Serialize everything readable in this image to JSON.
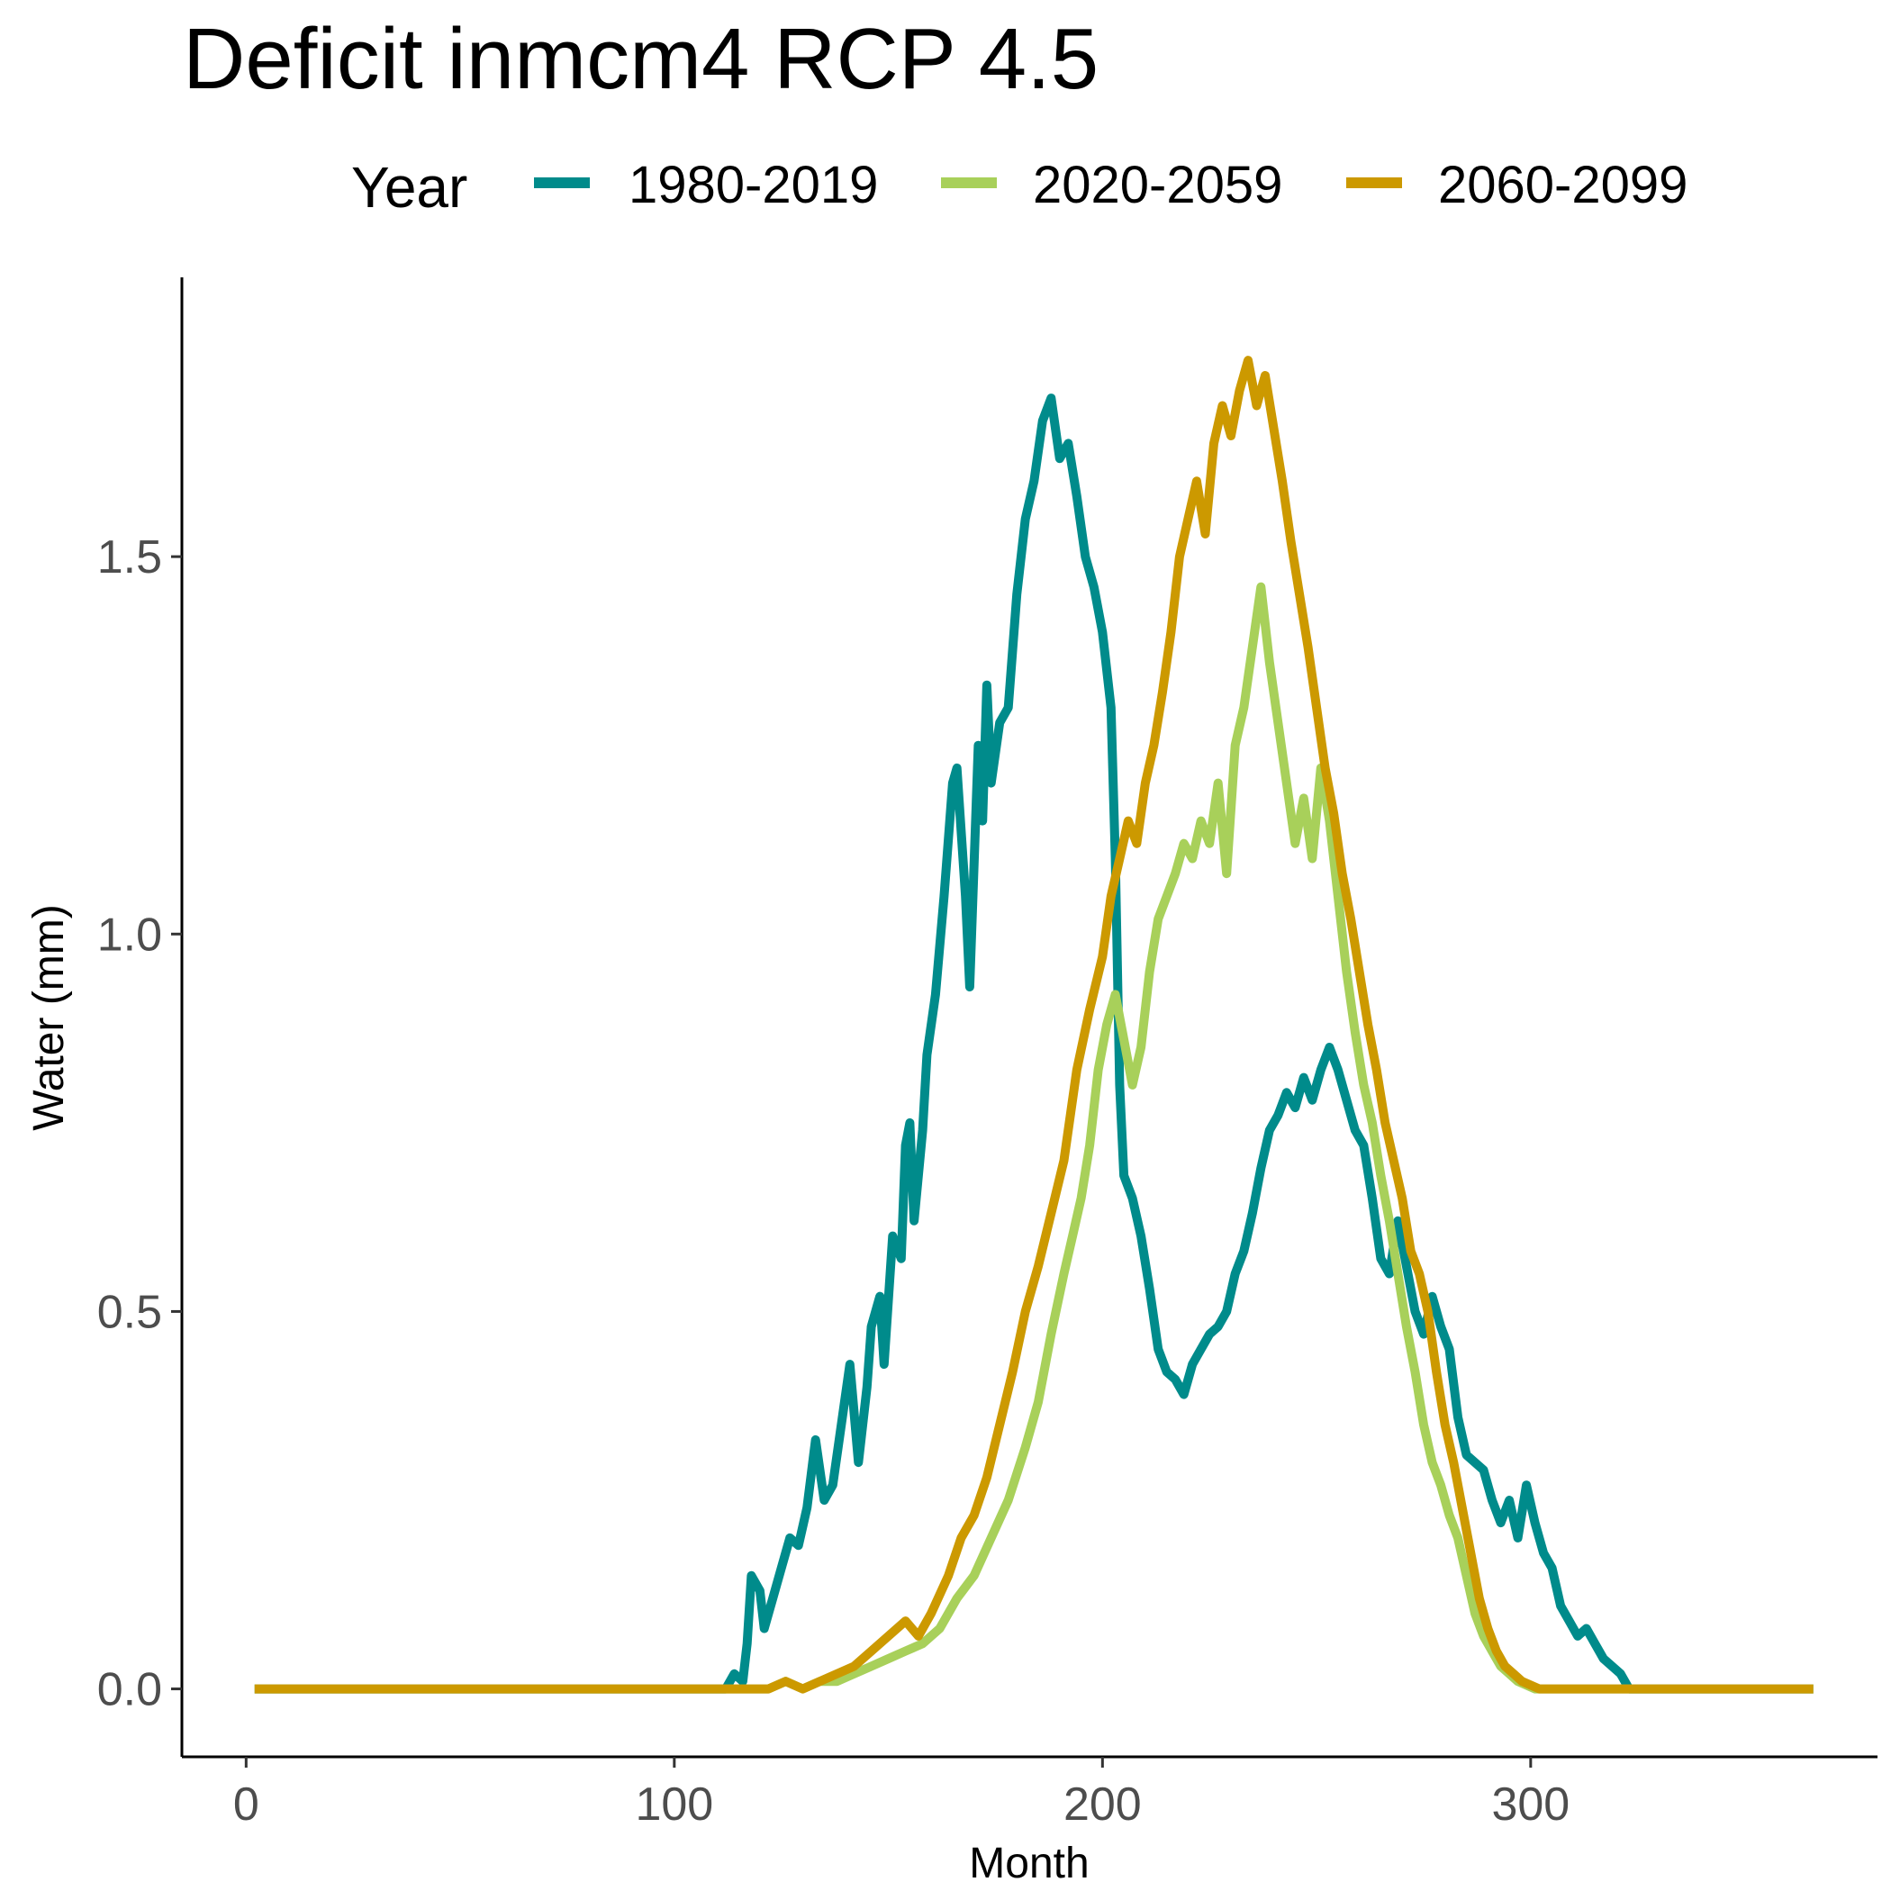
{
  "chart_data": {
    "type": "line",
    "title": "Deficit inmcm4 RCP 4.5",
    "xlabel": "Month",
    "ylabel": "Water (mm)",
    "xlim": [
      -15,
      381
    ],
    "ylim": [
      -0.09,
      1.87
    ],
    "xticks": [
      0,
      100,
      200,
      300
    ],
    "yticks": [
      0.0,
      0.5,
      1.0,
      1.5
    ],
    "xtick_labels": [
      "0",
      "100",
      "200",
      "300"
    ],
    "ytick_labels": [
      "0.0",
      "0.5",
      "1.0",
      "1.5"
    ],
    "legend": {
      "title": "Year",
      "position": "top"
    },
    "grid": false,
    "series": [
      {
        "name": "1980-2019",
        "color": "#008B8B",
        "points": [
          [
            2,
            0
          ],
          [
            112,
            0
          ],
          [
            114,
            0.02
          ],
          [
            116,
            0.01
          ],
          [
            117,
            0.06
          ],
          [
            118,
            0.15
          ],
          [
            120,
            0.13
          ],
          [
            121,
            0.08
          ],
          [
            123,
            0.12
          ],
          [
            125,
            0.16
          ],
          [
            127,
            0.2
          ],
          [
            129,
            0.19
          ],
          [
            131,
            0.24
          ],
          [
            133,
            0.33
          ],
          [
            135,
            0.25
          ],
          [
            137,
            0.27
          ],
          [
            139,
            0.35
          ],
          [
            141,
            0.43
          ],
          [
            143,
            0.3
          ],
          [
            145,
            0.4
          ],
          [
            146,
            0.48
          ],
          [
            148,
            0.52
          ],
          [
            149,
            0.43
          ],
          [
            151,
            0.6
          ],
          [
            153,
            0.57
          ],
          [
            154,
            0.72
          ],
          [
            155,
            0.75
          ],
          [
            156,
            0.62
          ],
          [
            158,
            0.74
          ],
          [
            159,
            0.84
          ],
          [
            161,
            0.92
          ],
          [
            163,
            1.05
          ],
          [
            165,
            1.2
          ],
          [
            166,
            1.22
          ],
          [
            168,
            1.05
          ],
          [
            169,
            0.93
          ],
          [
            171,
            1.25
          ],
          [
            172,
            1.15
          ],
          [
            173,
            1.33
          ],
          [
            174,
            1.2
          ],
          [
            176,
            1.28
          ],
          [
            178,
            1.3
          ],
          [
            180,
            1.45
          ],
          [
            182,
            1.55
          ],
          [
            184,
            1.6
          ],
          [
            186,
            1.68
          ],
          [
            188,
            1.71
          ],
          [
            190,
            1.63
          ],
          [
            192,
            1.65
          ],
          [
            194,
            1.58
          ],
          [
            196,
            1.5
          ],
          [
            198,
            1.46
          ],
          [
            200,
            1.4
          ],
          [
            202,
            1.3
          ],
          [
            203,
            1.1
          ],
          [
            204,
            0.8
          ],
          [
            205,
            0.68
          ],
          [
            207,
            0.65
          ],
          [
            209,
            0.6
          ],
          [
            211,
            0.53
          ],
          [
            213,
            0.45
          ],
          [
            215,
            0.42
          ],
          [
            217,
            0.41
          ],
          [
            219,
            0.39
          ],
          [
            221,
            0.43
          ],
          [
            223,
            0.45
          ],
          [
            225,
            0.47
          ],
          [
            227,
            0.48
          ],
          [
            229,
            0.5
          ],
          [
            231,
            0.55
          ],
          [
            233,
            0.58
          ],
          [
            235,
            0.63
          ],
          [
            237,
            0.69
          ],
          [
            239,
            0.74
          ],
          [
            241,
            0.76
          ],
          [
            243,
            0.79
          ],
          [
            245,
            0.77
          ],
          [
            247,
            0.81
          ],
          [
            249,
            0.78
          ],
          [
            251,
            0.82
          ],
          [
            253,
            0.85
          ],
          [
            255,
            0.82
          ],
          [
            257,
            0.78
          ],
          [
            259,
            0.74
          ],
          [
            261,
            0.72
          ],
          [
            263,
            0.65
          ],
          [
            265,
            0.57
          ],
          [
            267,
            0.55
          ],
          [
            269,
            0.62
          ],
          [
            271,
            0.56
          ],
          [
            273,
            0.5
          ],
          [
            275,
            0.47
          ],
          [
            277,
            0.52
          ],
          [
            279,
            0.48
          ],
          [
            281,
            0.45
          ],
          [
            283,
            0.36
          ],
          [
            285,
            0.31
          ],
          [
            287,
            0.3
          ],
          [
            289,
            0.29
          ],
          [
            291,
            0.25
          ],
          [
            293,
            0.22
          ],
          [
            295,
            0.25
          ],
          [
            297,
            0.2
          ],
          [
            299,
            0.27
          ],
          [
            301,
            0.22
          ],
          [
            303,
            0.18
          ],
          [
            305,
            0.16
          ],
          [
            307,
            0.11
          ],
          [
            309,
            0.09
          ],
          [
            311,
            0.07
          ],
          [
            313,
            0.08
          ],
          [
            315,
            0.06
          ],
          [
            317,
            0.04
          ],
          [
            319,
            0.03
          ],
          [
            321,
            0.02
          ],
          [
            323,
            0
          ],
          [
            366,
            0
          ]
        ]
      },
      {
        "name": "2020-2059",
        "color": "#A8D05A",
        "points": [
          [
            2,
            0
          ],
          [
            118,
            0
          ],
          [
            122,
            0
          ],
          [
            126,
            0.01
          ],
          [
            130,
            0
          ],
          [
            134,
            0.01
          ],
          [
            138,
            0.01
          ],
          [
            142,
            0.02
          ],
          [
            146,
            0.03
          ],
          [
            150,
            0.04
          ],
          [
            154,
            0.05
          ],
          [
            158,
            0.06
          ],
          [
            162,
            0.08
          ],
          [
            166,
            0.12
          ],
          [
            170,
            0.15
          ],
          [
            174,
            0.2
          ],
          [
            178,
            0.25
          ],
          [
            182,
            0.32
          ],
          [
            185,
            0.38
          ],
          [
            188,
            0.47
          ],
          [
            191,
            0.55
          ],
          [
            193,
            0.6
          ],
          [
            195,
            0.65
          ],
          [
            197,
            0.72
          ],
          [
            199,
            0.82
          ],
          [
            201,
            0.88
          ],
          [
            203,
            0.92
          ],
          [
            205,
            0.86
          ],
          [
            207,
            0.8
          ],
          [
            209,
            0.85
          ],
          [
            211,
            0.95
          ],
          [
            213,
            1.02
          ],
          [
            215,
            1.05
          ],
          [
            217,
            1.08
          ],
          [
            219,
            1.12
          ],
          [
            221,
            1.1
          ],
          [
            223,
            1.15
          ],
          [
            225,
            1.12
          ],
          [
            227,
            1.2
          ],
          [
            229,
            1.08
          ],
          [
            231,
            1.25
          ],
          [
            233,
            1.3
          ],
          [
            235,
            1.38
          ],
          [
            237,
            1.46
          ],
          [
            239,
            1.36
          ],
          [
            241,
            1.28
          ],
          [
            243,
            1.2
          ],
          [
            245,
            1.12
          ],
          [
            247,
            1.18
          ],
          [
            249,
            1.1
          ],
          [
            251,
            1.22
          ],
          [
            253,
            1.15
          ],
          [
            255,
            1.05
          ],
          [
            257,
            0.95
          ],
          [
            259,
            0.87
          ],
          [
            261,
            0.8
          ],
          [
            263,
            0.75
          ],
          [
            265,
            0.68
          ],
          [
            267,
            0.62
          ],
          [
            269,
            0.55
          ],
          [
            271,
            0.48
          ],
          [
            273,
            0.42
          ],
          [
            275,
            0.35
          ],
          [
            277,
            0.3
          ],
          [
            279,
            0.27
          ],
          [
            281,
            0.23
          ],
          [
            283,
            0.2
          ],
          [
            285,
            0.15
          ],
          [
            287,
            0.1
          ],
          [
            289,
            0.07
          ],
          [
            291,
            0.05
          ],
          [
            293,
            0.03
          ],
          [
            295,
            0.02
          ],
          [
            297,
            0.01
          ],
          [
            301,
            0
          ],
          [
            366,
            0
          ]
        ]
      },
      {
        "name": "2060-2099",
        "color": "#CC9900",
        "points": [
          [
            2,
            0
          ],
          [
            118,
            0
          ],
          [
            122,
            0
          ],
          [
            126,
            0.01
          ],
          [
            130,
            0
          ],
          [
            134,
            0.01
          ],
          [
            138,
            0.02
          ],
          [
            142,
            0.03
          ],
          [
            146,
            0.05
          ],
          [
            150,
            0.07
          ],
          [
            154,
            0.09
          ],
          [
            157,
            0.07
          ],
          [
            160,
            0.1
          ],
          [
            164,
            0.15
          ],
          [
            167,
            0.2
          ],
          [
            170,
            0.23
          ],
          [
            173,
            0.28
          ],
          [
            176,
            0.35
          ],
          [
            179,
            0.42
          ],
          [
            182,
            0.5
          ],
          [
            185,
            0.56
          ],
          [
            188,
            0.63
          ],
          [
            191,
            0.7
          ],
          [
            194,
            0.82
          ],
          [
            197,
            0.9
          ],
          [
            200,
            0.97
          ],
          [
            202,
            1.05
          ],
          [
            204,
            1.1
          ],
          [
            206,
            1.15
          ],
          [
            208,
            1.12
          ],
          [
            210,
            1.2
          ],
          [
            212,
            1.25
          ],
          [
            214,
            1.32
          ],
          [
            216,
            1.4
          ],
          [
            218,
            1.5
          ],
          [
            220,
            1.55
          ],
          [
            222,
            1.6
          ],
          [
            224,
            1.53
          ],
          [
            226,
            1.65
          ],
          [
            228,
            1.7
          ],
          [
            230,
            1.66
          ],
          [
            232,
            1.72
          ],
          [
            234,
            1.76
          ],
          [
            236,
            1.7
          ],
          [
            238,
            1.74
          ],
          [
            240,
            1.67
          ],
          [
            242,
            1.6
          ],
          [
            244,
            1.52
          ],
          [
            246,
            1.45
          ],
          [
            248,
            1.38
          ],
          [
            250,
            1.3
          ],
          [
            252,
            1.22
          ],
          [
            254,
            1.16
          ],
          [
            256,
            1.08
          ],
          [
            258,
            1.02
          ],
          [
            260,
            0.95
          ],
          [
            262,
            0.88
          ],
          [
            264,
            0.82
          ],
          [
            266,
            0.75
          ],
          [
            268,
            0.7
          ],
          [
            270,
            0.65
          ],
          [
            272,
            0.58
          ],
          [
            274,
            0.55
          ],
          [
            276,
            0.5
          ],
          [
            278,
            0.42
          ],
          [
            280,
            0.35
          ],
          [
            282,
            0.3
          ],
          [
            284,
            0.24
          ],
          [
            286,
            0.18
          ],
          [
            288,
            0.12
          ],
          [
            290,
            0.08
          ],
          [
            292,
            0.05
          ],
          [
            294,
            0.03
          ],
          [
            296,
            0.02
          ],
          [
            298,
            0.01
          ],
          [
            302,
            0
          ],
          [
            366,
            0
          ]
        ]
      }
    ]
  }
}
